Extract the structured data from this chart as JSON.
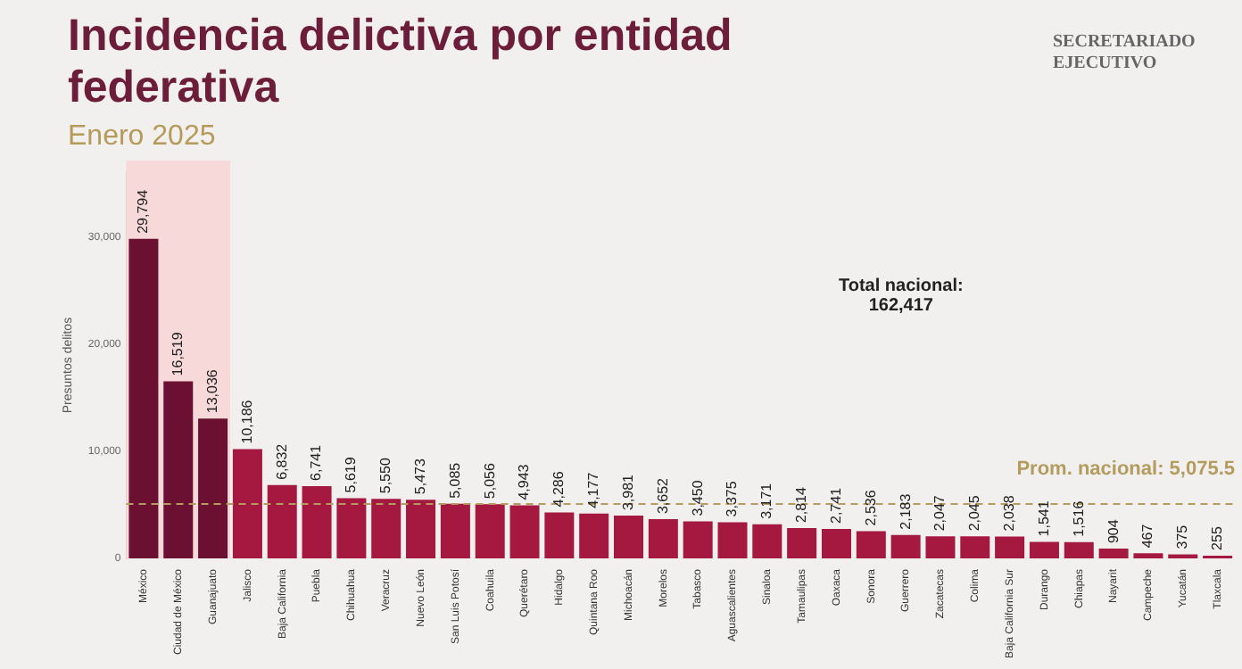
{
  "chart_data": {
    "type": "bar",
    "title": "Incidencia delictiva por entidad federativa",
    "subtitle": "Enero 2025",
    "ylabel": "Presuntos delitos",
    "categories": [
      "México",
      "Ciudad de México",
      "Guanajuato",
      "Jalisco",
      "Baja California",
      "Puebla",
      "Chihuahua",
      "Veracruz",
      "Nuevo León",
      "San Luis Potosí",
      "Coahuila",
      "Querétaro",
      "Hidalgo",
      "Quintana Roo",
      "Michoacán",
      "Morelos",
      "Tabasco",
      "Aguascalientes",
      "Sinaloa",
      "Tamaulipas",
      "Oaxaca",
      "Sonora",
      "Guerrero",
      "Zacatecas",
      "Colima",
      "Baja California Sur",
      "Durango",
      "Chiapas",
      "Nayarit",
      "Campeche",
      "Yucatán",
      "Tlaxcala"
    ],
    "values": [
      29794,
      16519,
      13036,
      10186,
      6832,
      6741,
      5619,
      5550,
      5473,
      5085,
      5056,
      4943,
      4286,
      4177,
      3981,
      3652,
      3450,
      3375,
      3171,
      2814,
      2741,
      2536,
      2183,
      2047,
      2045,
      2038,
      1541,
      1516,
      904,
      467,
      375,
      255
    ],
    "value_labels": [
      "29,794",
      "16,519",
      "13,036",
      "10,186",
      "6,832",
      "6,741",
      "5,619",
      "5,550",
      "5,473",
      "5,085",
      "5,056",
      "4,943",
      "4,286",
      "4,177",
      "3,981",
      "3,652",
      "3,450",
      "3,375",
      "3,171",
      "2,814",
      "2,741",
      "2,536",
      "2,183",
      "2,047",
      "2,045",
      "2,038",
      "1,541",
      "1,516",
      "904",
      "467",
      "375",
      "255"
    ],
    "colors": [
      "#6b1030",
      "#6b1030",
      "#6b1030",
      "#a5183f",
      "#a5183f",
      "#a5183f",
      "#a5183f",
      "#a5183f",
      "#a5183f",
      "#a5183f",
      "#a5183f",
      "#a5183f",
      "#a5183f",
      "#a5183f",
      "#a5183f",
      "#a5183f",
      "#a5183f",
      "#a5183f",
      "#a5183f",
      "#a5183f",
      "#a5183f",
      "#a5183f",
      "#a5183f",
      "#a5183f",
      "#a5183f",
      "#a5183f",
      "#a5183f",
      "#a5183f",
      "#a5183f",
      "#a5183f",
      "#a5183f",
      "#a5183f"
    ],
    "ylim": [
      0,
      36000
    ],
    "yticks": [
      0,
      {
        "value": 10000,
        "label": "10,000"
      },
      {
        "value": 20000,
        "label": "20,000"
      },
      {
        "value": 30000,
        "label": "30,000"
      }
    ],
    "grid": false,
    "legend": false,
    "ref_lines": [
      {
        "axis": "y",
        "value": 5075.5,
        "label": "Prom. nacional: 5,075.5",
        "color": "#b39c5e",
        "line_style": "dashed"
      }
    ],
    "bands": [
      {
        "axis": "x",
        "from": "México",
        "to": "Guanajuato",
        "color": "#f7d9da"
      }
    ],
    "annotations": [
      "Total nacional:\n162,417",
      "SECRETARIADO EJECUTIVO"
    ]
  }
}
